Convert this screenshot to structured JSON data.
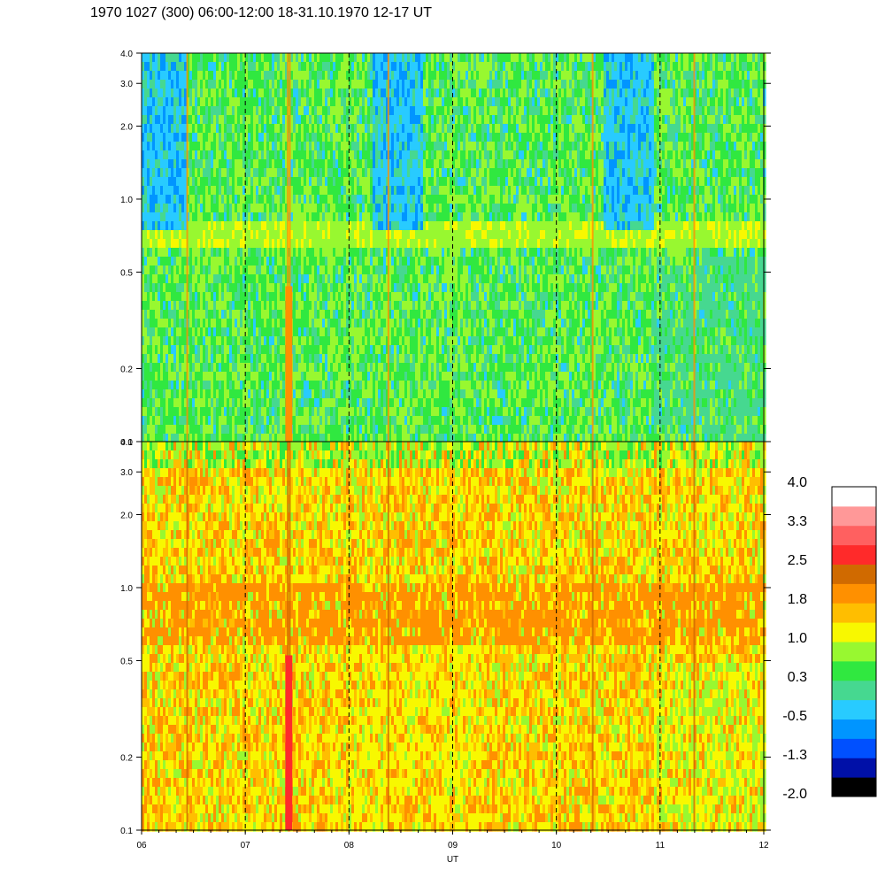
{
  "title": "1970 1027 (300) 06:00-12:00 18-31.10.1970  12-17 UT",
  "chart_data": [
    {
      "type": "heatmap",
      "panel": "upper",
      "xlabel": "",
      "ylabel": "",
      "xlim": [
        6,
        12
      ],
      "ylim": [
        0.1,
        4.0
      ],
      "yscale": "log",
      "y_ticks": [
        "0.1",
        "0.2",
        "0.5",
        "1.0",
        "2.0",
        "3.0",
        "4.0"
      ],
      "y_tick_values": [
        0.1,
        0.2,
        0.5,
        1.0,
        2.0,
        3.0,
        4.0
      ],
      "dashed_vertical_lines_at": [
        7,
        8,
        9,
        10,
        11
      ],
      "dominant_level_range": [
        -0.5,
        1.0
      ]
    },
    {
      "type": "heatmap",
      "panel": "lower",
      "xlabel": "UT",
      "ylabel": "",
      "xlim": [
        6,
        12
      ],
      "ylim": [
        0.1,
        4.0
      ],
      "yscale": "log",
      "x_ticks": [
        "06",
        "07",
        "08",
        "09",
        "10",
        "11",
        "12"
      ],
      "x_tick_values": [
        6,
        7,
        8,
        9,
        10,
        11,
        12
      ],
      "y_ticks": [
        "0.1",
        "0.2",
        "0.5",
        "1.0",
        "2.0",
        "3.0",
        "4.0"
      ],
      "y_tick_values": [
        0.1,
        0.2,
        0.5,
        1.0,
        2.0,
        3.0,
        4.0
      ],
      "dashed_vertical_lines_at": [
        7,
        8,
        9,
        10,
        11
      ],
      "dominant_level_range": [
        1.0,
        2.5
      ]
    }
  ],
  "colorbar": {
    "labels": [
      "4.0",
      "3.3",
      "2.5",
      "1.8",
      "1.0",
      "0.3",
      "-0.5",
      "-1.3",
      "-2.0"
    ],
    "colors": [
      "#000000",
      "#0010a8",
      "#0050ff",
      "#0095ff",
      "#28cbff",
      "#46d890",
      "#30e840",
      "#98f830",
      "#f8f800",
      "#ffbe00",
      "#ff9000",
      "#d06a00",
      "#ff2a2a",
      "#ff6060",
      "#ff9898",
      "#ffffff"
    ]
  }
}
